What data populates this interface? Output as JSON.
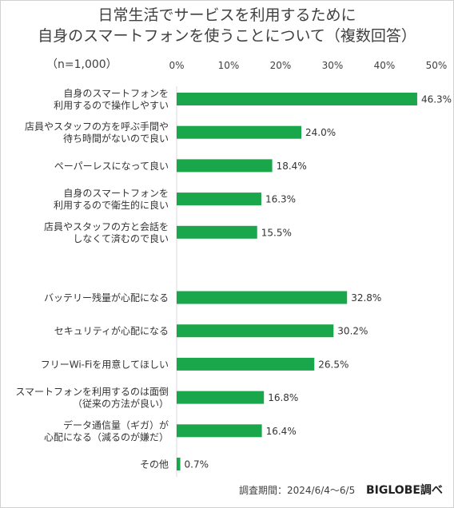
{
  "title_line1": "日常生活でサービスを利用するために",
  "title_line2": "自身のスマートフォンを使うことについて（複数回答）",
  "sample_size": "（n=1,000）",
  "footer": {
    "period": "調査期間：2024/6/4〜6/5",
    "brand": "BIGLOBE調べ"
  },
  "chart_data": {
    "type": "bar",
    "orientation": "horizontal",
    "title": "日常生活でサービスを利用するために 自身のスマートフォンを使うことについて（複数回答）",
    "xlim": [
      0,
      50
    ],
    "xticks": [
      "0%",
      "10%",
      "20%",
      "30%",
      "40%",
      "50%"
    ],
    "grid": false,
    "bar_color": "#1aa64a",
    "groups": [
      {
        "items": [
          {
            "label": [
              "自身のスマートフォンを",
              "利用するので操作しやすい"
            ],
            "value": 46.3,
            "value_label": "46.3%"
          },
          {
            "label": [
              "店員やスタッフの方を呼ぶ手間や",
              "待ち時間がないので良い"
            ],
            "value": 24.0,
            "value_label": "24.0%"
          },
          {
            "label": [
              "ペーパーレスになって良い"
            ],
            "value": 18.4,
            "value_label": "18.4%"
          },
          {
            "label": [
              "自身のスマートフォンを",
              "利用するので衛生的に良い"
            ],
            "value": 16.3,
            "value_label": "16.3%"
          },
          {
            "label": [
              "店員やスタッフの方と会話を",
              "しなくて済むので良い"
            ],
            "value": 15.5,
            "value_label": "15.5%"
          }
        ]
      },
      {
        "items": [
          {
            "label": [
              "バッテリー残量が心配になる"
            ],
            "value": 32.8,
            "value_label": "32.8%"
          },
          {
            "label": [
              "セキュリティが心配になる"
            ],
            "value": 30.2,
            "value_label": "30.2%"
          },
          {
            "label": [
              "フリーWi-Fiを用意してほしい"
            ],
            "value": 26.5,
            "value_label": "26.5%"
          },
          {
            "label": [
              "スマートフォンを利用するのは面倒",
              "（従来の方法が良い）"
            ],
            "value": 16.8,
            "value_label": "16.8%"
          },
          {
            "label": [
              "データ通信量（ギガ）が",
              "心配になる（減るのが嫌だ）"
            ],
            "value": 16.4,
            "value_label": "16.4%"
          },
          {
            "label": [
              "その他"
            ],
            "value": 0.7,
            "value_label": "0.7%"
          }
        ]
      }
    ]
  }
}
